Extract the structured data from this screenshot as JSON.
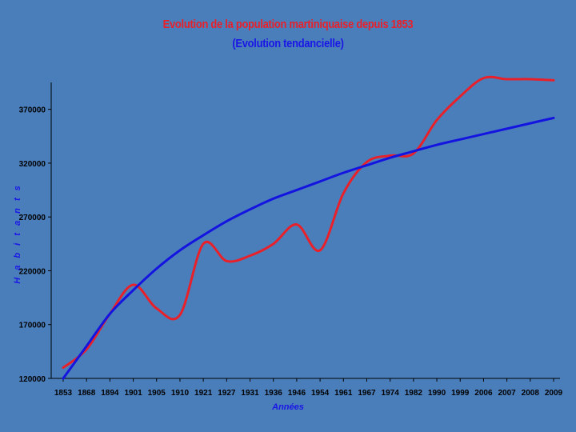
{
  "chart_data": {
    "type": "line",
    "title": "Evolution de la population martiniquaise depuis 1853",
    "subtitle": "(Evolution tendancielle)",
    "xlabel": "Années",
    "ylabel": "H a b i t a n t s",
    "categories": [
      "1853",
      "1868",
      "1894",
      "1901",
      "1905",
      "1910",
      "1921",
      "1927",
      "1931",
      "1936",
      "1946",
      "1954",
      "1961",
      "1967",
      "1974",
      "1982",
      "1990",
      "1999",
      "2006",
      "2007",
      "2008",
      "2009"
    ],
    "y_ticks": [
      120000,
      170000,
      220000,
      270000,
      320000,
      370000
    ],
    "ylim": [
      120000,
      395000
    ],
    "grid": false,
    "legend": "none",
    "series": [
      {
        "color": "#e8202a",
        "values": [
          130000,
          147000,
          180000,
          207000,
          185000,
          179000,
          245000,
          229000,
          234000,
          245000,
          263000,
          239000,
          292000,
          321000,
          327000,
          329000,
          360000,
          382000,
          399000,
          398000,
          398000,
          397000
        ]
      },
      {
        "color": "#1414e0",
        "values": [
          120000,
          150000,
          180000,
          202000,
          222000,
          239000,
          253000,
          266000,
          277000,
          287000,
          295000,
          303000,
          311000,
          318000,
          325000,
          331000,
          337000,
          342000,
          347000,
          352000,
          357000,
          362000
        ]
      }
    ]
  }
}
